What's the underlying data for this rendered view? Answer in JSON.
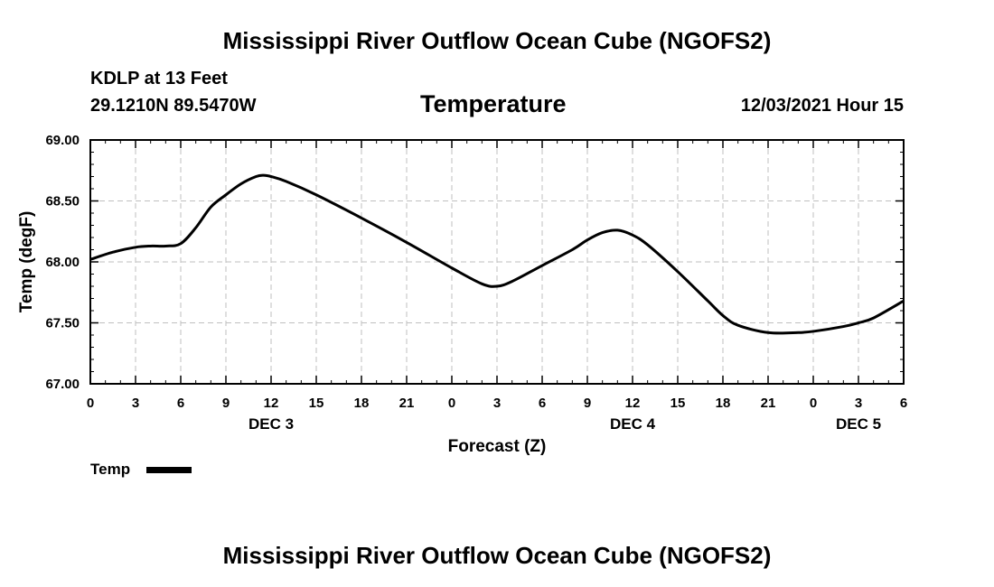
{
  "page": {
    "title_top": "Mississippi River Outflow Ocean Cube (NGOFS2)",
    "title_bottom": "Mississippi River Outflow Ocean Cube (NGOFS2)",
    "station_line": "KDLP at 13 Feet",
    "coords_line": "29.1210N  89.5470W",
    "panel_title": "Temperature",
    "run_time": "12/03/2021 Hour 15",
    "legend_label": "Temp"
  },
  "colors": {
    "line": "#000000",
    "grid": "#bfbfbf",
    "frame": "#000000"
  },
  "chart_data": {
    "type": "line",
    "title": "Temperature",
    "xlabel": "Forecast (Z)",
    "ylabel": "Temp (degF)",
    "xlim": [
      0,
      54
    ],
    "ylim": [
      67.0,
      69.0
    ],
    "ytick_values": [
      67.0,
      67.5,
      68.0,
      68.5,
      69.0
    ],
    "ytick_labels": [
      "67.00",
      "67.50",
      "68.00",
      "68.50",
      "69.00"
    ],
    "xtick_values": [
      0,
      3,
      6,
      9,
      12,
      15,
      18,
      21,
      24,
      27,
      30,
      33,
      36,
      39,
      42,
      45,
      48,
      51,
      54
    ],
    "xtick_labels": [
      "0",
      "3",
      "6",
      "9",
      "12",
      "15",
      "18",
      "21",
      "0",
      "3",
      "6",
      "9",
      "12",
      "15",
      "18",
      "21",
      "0",
      "3",
      "6"
    ],
    "day_labels": [
      {
        "x": 12,
        "label": "DEC 3"
      },
      {
        "x": 36,
        "label": "DEC 4"
      },
      {
        "x": 51,
        "label": "DEC 5"
      }
    ],
    "grid": true,
    "series": [
      {
        "name": "Temp",
        "x": [
          0,
          1.5,
          3,
          4,
          5,
          6,
          7,
          8,
          9,
          10,
          11,
          11.5,
          12,
          13,
          15,
          18,
          21,
          24,
          26,
          27,
          28,
          30,
          32,
          33,
          34,
          35,
          36,
          37,
          39,
          41,
          42,
          43,
          45,
          47,
          48,
          50,
          51,
          52,
          54
        ],
        "y": [
          68.02,
          68.08,
          68.12,
          68.13,
          68.13,
          68.15,
          68.28,
          68.45,
          68.55,
          68.64,
          68.7,
          68.71,
          68.7,
          68.66,
          68.55,
          68.36,
          68.16,
          67.95,
          67.82,
          67.8,
          67.84,
          67.97,
          68.1,
          68.18,
          68.24,
          68.26,
          68.22,
          68.14,
          67.92,
          67.68,
          67.56,
          67.48,
          67.42,
          67.42,
          67.43,
          67.47,
          67.5,
          67.54,
          67.68
        ]
      }
    ]
  }
}
